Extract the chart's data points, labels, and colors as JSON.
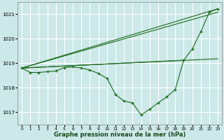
{
  "title": "Graphe pression niveau de la mer (hPa)",
  "bg_color": "#cce8e8",
  "grid_color": "#ffffff",
  "line_color": "#1a6b1a",
  "xlim": [
    -0.5,
    23.5
  ],
  "ylim": [
    1016.5,
    1021.5
  ],
  "yticks": [
    1017,
    1018,
    1019,
    1020,
    1021
  ],
  "xticks": [
    0,
    1,
    2,
    3,
    4,
    5,
    6,
    7,
    8,
    9,
    10,
    11,
    12,
    13,
    14,
    15,
    16,
    17,
    18,
    19,
    20,
    21,
    22,
    23
  ],
  "line1_x": [
    0,
    1,
    2,
    3,
    4,
    5,
    6,
    7,
    8,
    9,
    10,
    11,
    12,
    13,
    14,
    15,
    16,
    17,
    18,
    19,
    20,
    21,
    22,
    23
  ],
  "line1_y": [
    1018.8,
    1018.62,
    1018.62,
    1018.65,
    1018.68,
    1018.82,
    1018.85,
    1018.8,
    1018.72,
    1018.58,
    1018.38,
    1017.72,
    1017.45,
    1017.38,
    1016.88,
    1017.12,
    1017.38,
    1017.62,
    1017.92,
    1019.12,
    1019.58,
    1020.28,
    1021.08,
    1021.22
  ],
  "straight_lines": [
    {
      "x": [
        0,
        23
      ],
      "y": [
        1018.8,
        1021.22
      ]
    },
    {
      "x": [
        0,
        23
      ],
      "y": [
        1018.8,
        1021.08
      ]
    },
    {
      "x": [
        0,
        19
      ],
      "y": [
        1018.8,
        1019.12
      ]
    },
    {
      "x": [
        0,
        23
      ],
      "y": [
        1018.8,
        1019.18
      ]
    }
  ]
}
